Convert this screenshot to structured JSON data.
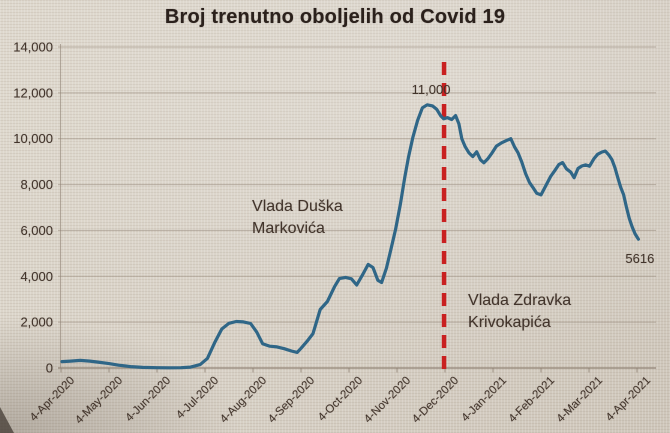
{
  "title": "Broj trenutno oboljelih od Covid 19",
  "colors": {
    "line": "#2f6687",
    "red_line": "#c92020",
    "text": "#42342b",
    "title_text": "#2b211c",
    "grid": "#8f8173",
    "background": "#d8d1c6"
  },
  "chart_data": {
    "type": "line",
    "title": "Broj trenutno oboljelih od Covid 19",
    "xlabel": "",
    "ylabel": "",
    "ylim": [
      0,
      14000
    ],
    "x_span_months": 12,
    "grid": true,
    "legend": false,
    "x_tick_labels": [
      "4-Apr-2020",
      "4-May-2020",
      "4-Jun-2020",
      "4-Jul-2020",
      "4-Aug-2020",
      "4-Sep-2020",
      "4-Oct-2020",
      "4-Nov-2020",
      "4-Dec-2020",
      "4-Jan-2021",
      "4-Feb-2021",
      "4-Mar-2021",
      "4-Apr-2021"
    ],
    "y_ticks": [
      {
        "v": 0,
        "label": "0"
      },
      {
        "v": 2000,
        "label": "2,000"
      },
      {
        "v": 4000,
        "label": "4,000"
      },
      {
        "v": 6000,
        "label": "6,000"
      },
      {
        "v": 8000,
        "label": "8,000"
      },
      {
        "v": 10000,
        "label": "10,000"
      },
      {
        "v": 12000,
        "label": "12,000"
      },
      {
        "v": 14000,
        "label": "14,000"
      }
    ],
    "series": [
      {
        "name": "broj-trenutno-oboljelih",
        "points": [
          [
            0.02,
            280
          ],
          [
            0.2,
            300
          ],
          [
            0.4,
            330
          ],
          [
            0.6,
            300
          ],
          [
            0.75,
            260
          ],
          [
            1.0,
            190
          ],
          [
            1.2,
            120
          ],
          [
            1.45,
            60
          ],
          [
            1.7,
            25
          ],
          [
            2.0,
            15
          ],
          [
            2.25,
            10
          ],
          [
            2.5,
            15
          ],
          [
            2.7,
            40
          ],
          [
            2.9,
            150
          ],
          [
            3.05,
            420
          ],
          [
            3.2,
            1100
          ],
          [
            3.35,
            1700
          ],
          [
            3.5,
            1950
          ],
          [
            3.65,
            2030
          ],
          [
            3.8,
            2010
          ],
          [
            3.95,
            1940
          ],
          [
            4.08,
            1560
          ],
          [
            4.2,
            1060
          ],
          [
            4.35,
            950
          ],
          [
            4.5,
            920
          ],
          [
            4.65,
            840
          ],
          [
            4.8,
            740
          ],
          [
            4.92,
            680
          ],
          [
            5.0,
            860
          ],
          [
            5.12,
            1150
          ],
          [
            5.25,
            1500
          ],
          [
            5.4,
            2550
          ],
          [
            5.55,
            2900
          ],
          [
            5.7,
            3550
          ],
          [
            5.8,
            3900
          ],
          [
            5.93,
            3950
          ],
          [
            6.05,
            3890
          ],
          [
            6.16,
            3620
          ],
          [
            6.28,
            4050
          ],
          [
            6.4,
            4520
          ],
          [
            6.5,
            4380
          ],
          [
            6.6,
            3830
          ],
          [
            6.68,
            3730
          ],
          [
            6.78,
            4350
          ],
          [
            6.87,
            5150
          ],
          [
            6.97,
            6050
          ],
          [
            7.07,
            7150
          ],
          [
            7.16,
            8300
          ],
          [
            7.24,
            9200
          ],
          [
            7.33,
            10050
          ],
          [
            7.43,
            10800
          ],
          [
            7.53,
            11350
          ],
          [
            7.63,
            11480
          ],
          [
            7.74,
            11430
          ],
          [
            7.83,
            11280
          ],
          [
            7.91,
            11000
          ],
          [
            7.97,
            10870
          ],
          [
            8.05,
            10920
          ],
          [
            8.14,
            10840
          ],
          [
            8.22,
            11010
          ],
          [
            8.29,
            10650
          ],
          [
            8.35,
            10000
          ],
          [
            8.42,
            9650
          ],
          [
            8.5,
            9380
          ],
          [
            8.58,
            9220
          ],
          [
            8.66,
            9430
          ],
          [
            8.74,
            9080
          ],
          [
            8.81,
            8950
          ],
          [
            8.89,
            9120
          ],
          [
            8.97,
            9350
          ],
          [
            9.07,
            9680
          ],
          [
            9.18,
            9820
          ],
          [
            9.29,
            9930
          ],
          [
            9.37,
            10000
          ],
          [
            9.45,
            9640
          ],
          [
            9.52,
            9390
          ],
          [
            9.6,
            8980
          ],
          [
            9.68,
            8480
          ],
          [
            9.76,
            8090
          ],
          [
            9.83,
            7880
          ],
          [
            9.91,
            7620
          ],
          [
            10.0,
            7550
          ],
          [
            10.1,
            7950
          ],
          [
            10.2,
            8350
          ],
          [
            10.29,
            8620
          ],
          [
            10.37,
            8870
          ],
          [
            10.45,
            8960
          ],
          [
            10.53,
            8690
          ],
          [
            10.62,
            8540
          ],
          [
            10.69,
            8300
          ],
          [
            10.77,
            8700
          ],
          [
            10.85,
            8810
          ],
          [
            10.93,
            8860
          ],
          [
            11.01,
            8800
          ],
          [
            11.1,
            9120
          ],
          [
            11.18,
            9320
          ],
          [
            11.27,
            9420
          ],
          [
            11.34,
            9460
          ],
          [
            11.41,
            9300
          ],
          [
            11.48,
            9080
          ],
          [
            11.54,
            8740
          ],
          [
            11.6,
            8300
          ],
          [
            11.66,
            7880
          ],
          [
            11.72,
            7560
          ],
          [
            11.78,
            7020
          ],
          [
            11.84,
            6520
          ],
          [
            11.9,
            6150
          ],
          [
            11.96,
            5850
          ],
          [
            12.03,
            5616
          ]
        ]
      }
    ],
    "vline": {
      "t": 7.98,
      "style": "dashed-red"
    },
    "annotations": [
      {
        "id": "peak-value-label",
        "text": "11,000",
        "t": 7.71,
        "v": 11950,
        "anchor": "middle",
        "size": 13
      },
      {
        "id": "end-value-label",
        "text": "5616",
        "t": 12.06,
        "v": 4580,
        "anchor": "middle",
        "size": 13
      },
      {
        "id": "gov-markovic-label",
        "lines": [
          "Vlada Duška",
          "Markovića"
        ],
        "t": 3.98,
        "v": 6850,
        "anchor": "start",
        "size": 16
      },
      {
        "id": "gov-krivokapic-label",
        "lines": [
          "Vlada Zdravka",
          "Krivokapića"
        ],
        "t": 8.48,
        "v": 2750,
        "anchor": "start",
        "size": 16
      }
    ]
  }
}
